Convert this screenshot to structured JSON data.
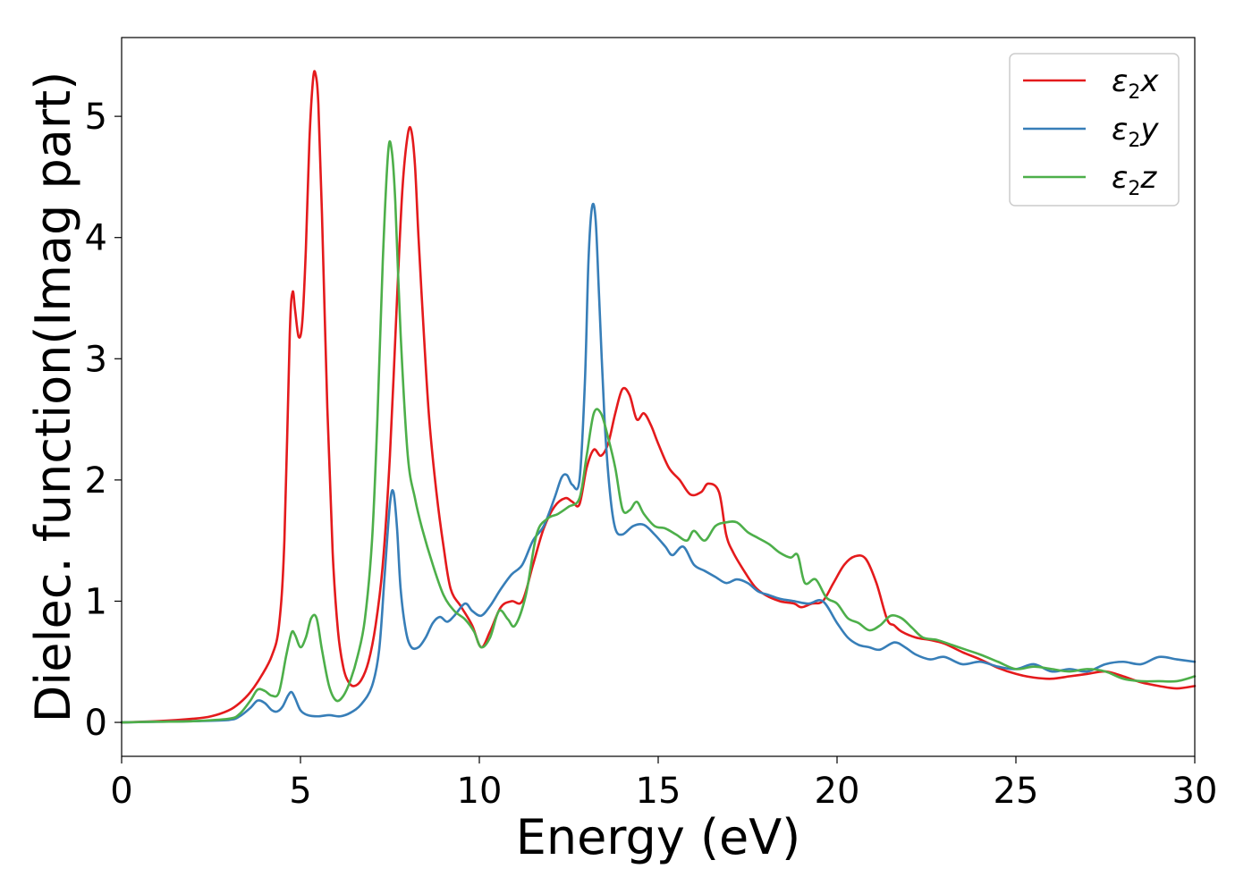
{
  "chart_data": {
    "type": "line",
    "title": "",
    "xlabel": "Energy (eV)",
    "ylabel": "Dielec. function(Imag part)",
    "xlim": [
      0,
      30
    ],
    "ylim": [
      -0.28,
      5.65
    ],
    "xticks": [
      0,
      5,
      10,
      15,
      20,
      25,
      30
    ],
    "yticks": [
      0,
      1,
      2,
      3,
      4,
      5
    ],
    "grid": false,
    "legend_position": "top-right",
    "series": [
      {
        "name": "ε2x",
        "name_base": "ε",
        "name_sub": "2",
        "name_var": "x",
        "color": "#e41a1c",
        "x": [
          0,
          1,
          2,
          2.5,
          3,
          3.3,
          3.6,
          3.9,
          4.2,
          4.4,
          4.55,
          4.7,
          4.78,
          4.85,
          4.95,
          5.05,
          5.15,
          5.25,
          5.35,
          5.42,
          5.5,
          5.6,
          5.75,
          5.9,
          6.05,
          6.2,
          6.35,
          6.5,
          6.7,
          6.9,
          7.1,
          7.3,
          7.5,
          7.7,
          7.85,
          8.0,
          8.1,
          8.2,
          8.3,
          8.45,
          8.6,
          8.8,
          9.0,
          9.2,
          9.5,
          9.8,
          10.05,
          10.3,
          10.6,
          10.9,
          11.2,
          11.5,
          11.8,
          12.1,
          12.4,
          12.6,
          12.8,
          13.0,
          13.2,
          13.4,
          13.6,
          13.8,
          14.0,
          14.2,
          14.4,
          14.6,
          14.8,
          15.0,
          15.3,
          15.6,
          15.9,
          16.2,
          16.4,
          16.7,
          16.9,
          17.1,
          17.4,
          17.7,
          18.0,
          18.4,
          18.8,
          19.0,
          19.3,
          19.6,
          19.9,
          20.2,
          20.5,
          20.8,
          21.1,
          21.4,
          21.6,
          21.8,
          22.2,
          22.6,
          23.0,
          23.5,
          24.0,
          24.5,
          25.0,
          25.5,
          26.0,
          26.5,
          27.0,
          27.5,
          28.0,
          28.5,
          29.0,
          29.5,
          30.0
        ],
        "y": [
          0.0,
          0.01,
          0.03,
          0.05,
          0.1,
          0.16,
          0.25,
          0.38,
          0.55,
          0.8,
          1.5,
          3.2,
          3.55,
          3.4,
          3.18,
          3.3,
          3.9,
          4.8,
          5.3,
          5.35,
          5.1,
          4.2,
          2.6,
          1.4,
          0.75,
          0.45,
          0.33,
          0.3,
          0.35,
          0.5,
          0.8,
          1.3,
          2.2,
          3.5,
          4.4,
          4.85,
          4.88,
          4.6,
          4.0,
          3.2,
          2.5,
          1.9,
          1.45,
          1.1,
          0.95,
          0.8,
          0.62,
          0.75,
          0.95,
          1.0,
          1.0,
          1.3,
          1.6,
          1.78,
          1.85,
          1.82,
          1.8,
          2.1,
          2.25,
          2.2,
          2.3,
          2.55,
          2.75,
          2.7,
          2.5,
          2.55,
          2.45,
          2.3,
          2.1,
          2.0,
          1.88,
          1.9,
          1.97,
          1.9,
          1.55,
          1.4,
          1.25,
          1.12,
          1.05,
          1.0,
          0.98,
          0.95,
          0.98,
          1.0,
          1.15,
          1.3,
          1.37,
          1.35,
          1.15,
          0.85,
          0.8,
          0.75,
          0.7,
          0.68,
          0.65,
          0.58,
          0.52,
          0.45,
          0.4,
          0.37,
          0.36,
          0.38,
          0.4,
          0.42,
          0.38,
          0.33,
          0.3,
          0.28,
          0.3
        ]
      },
      {
        "name": "ε2y",
        "name_base": "ε",
        "name_sub": "2",
        "name_var": "y",
        "color": "#377eb8",
        "x": [
          0,
          1,
          2,
          3,
          3.3,
          3.6,
          3.8,
          4.0,
          4.2,
          4.35,
          4.5,
          4.65,
          4.75,
          4.85,
          5.0,
          5.2,
          5.5,
          5.8,
          6.1,
          6.4,
          6.7,
          7.0,
          7.2,
          7.35,
          7.5,
          7.6,
          7.7,
          7.8,
          7.95,
          8.1,
          8.3,
          8.5,
          8.7,
          8.9,
          9.1,
          9.3,
          9.6,
          9.8,
          10.05,
          10.3,
          10.6,
          10.9,
          11.2,
          11.5,
          11.8,
          12.1,
          12.3,
          12.45,
          12.6,
          12.8,
          12.95,
          13.05,
          13.15,
          13.25,
          13.35,
          13.5,
          13.65,
          13.8,
          14.0,
          14.3,
          14.6,
          14.9,
          15.2,
          15.4,
          15.7,
          16.0,
          16.3,
          16.6,
          16.9,
          17.2,
          17.5,
          17.8,
          18.1,
          18.4,
          18.8,
          19.2,
          19.6,
          20.0,
          20.3,
          20.6,
          20.9,
          21.2,
          21.6,
          21.9,
          22.2,
          22.6,
          23.0,
          23.5,
          24.0,
          24.5,
          25.0,
          25.5,
          26.0,
          26.5,
          27.0,
          27.5,
          28.0,
          28.5,
          29.0,
          29.5,
          30.0
        ],
        "y": [
          0.0,
          0.005,
          0.01,
          0.02,
          0.05,
          0.12,
          0.18,
          0.16,
          0.1,
          0.09,
          0.13,
          0.22,
          0.25,
          0.2,
          0.1,
          0.06,
          0.05,
          0.06,
          0.05,
          0.08,
          0.15,
          0.3,
          0.6,
          1.2,
          1.8,
          1.9,
          1.6,
          1.1,
          0.75,
          0.62,
          0.62,
          0.7,
          0.82,
          0.87,
          0.83,
          0.88,
          0.98,
          0.92,
          0.88,
          0.96,
          1.1,
          1.22,
          1.3,
          1.5,
          1.62,
          1.85,
          2.02,
          2.04,
          1.96,
          2.0,
          2.8,
          3.8,
          4.25,
          4.15,
          3.5,
          2.5,
          1.9,
          1.6,
          1.55,
          1.62,
          1.63,
          1.55,
          1.45,
          1.38,
          1.45,
          1.3,
          1.25,
          1.2,
          1.15,
          1.18,
          1.15,
          1.08,
          1.05,
          1.02,
          1.0,
          0.98,
          1.0,
          0.82,
          0.7,
          0.64,
          0.62,
          0.6,
          0.66,
          0.62,
          0.56,
          0.52,
          0.54,
          0.48,
          0.5,
          0.46,
          0.44,
          0.48,
          0.42,
          0.44,
          0.42,
          0.48,
          0.5,
          0.48,
          0.54,
          0.52,
          0.5
        ]
      },
      {
        "name": "ε2z",
        "name_base": "ε",
        "name_sub": "2",
        "name_var": "z",
        "color": "#4daf4a",
        "x": [
          0,
          1,
          2,
          3,
          3.3,
          3.6,
          3.8,
          4.0,
          4.2,
          4.4,
          4.6,
          4.75,
          4.85,
          5.0,
          5.15,
          5.3,
          5.45,
          5.6,
          5.8,
          6.0,
          6.2,
          6.4,
          6.6,
          6.8,
          7.0,
          7.15,
          7.3,
          7.45,
          7.55,
          7.65,
          7.8,
          8.0,
          8.2,
          8.4,
          8.7,
          9.0,
          9.3,
          9.6,
          9.85,
          10.05,
          10.3,
          10.55,
          10.8,
          11.0,
          11.3,
          11.6,
          11.9,
          12.2,
          12.5,
          12.8,
          13.0,
          13.2,
          13.4,
          13.6,
          13.8,
          14.0,
          14.2,
          14.4,
          14.6,
          14.9,
          15.2,
          15.5,
          15.8,
          16.0,
          16.3,
          16.6,
          16.9,
          17.2,
          17.5,
          17.8,
          18.1,
          18.4,
          18.7,
          18.9,
          19.1,
          19.4,
          19.7,
          20.0,
          20.3,
          20.6,
          20.9,
          21.2,
          21.5,
          21.8,
          22.1,
          22.4,
          22.8,
          23.2,
          23.6,
          24.0,
          24.5,
          25.0,
          25.5,
          26.0,
          26.5,
          27.0,
          27.5,
          28.0,
          28.5,
          29.0,
          29.5,
          30.0
        ],
        "y": [
          0.0,
          0.005,
          0.01,
          0.03,
          0.07,
          0.18,
          0.27,
          0.26,
          0.22,
          0.25,
          0.55,
          0.74,
          0.72,
          0.62,
          0.7,
          0.86,
          0.86,
          0.6,
          0.3,
          0.18,
          0.22,
          0.35,
          0.55,
          0.85,
          1.5,
          2.5,
          3.8,
          4.7,
          4.72,
          4.3,
          3.2,
          2.2,
          1.85,
          1.6,
          1.3,
          1.05,
          0.92,
          0.85,
          0.75,
          0.62,
          0.7,
          0.92,
          0.85,
          0.8,
          1.05,
          1.55,
          1.68,
          1.72,
          1.78,
          1.85,
          2.2,
          2.55,
          2.55,
          2.35,
          2.1,
          1.76,
          1.75,
          1.82,
          1.72,
          1.62,
          1.6,
          1.55,
          1.5,
          1.58,
          1.5,
          1.62,
          1.65,
          1.65,
          1.57,
          1.52,
          1.47,
          1.4,
          1.36,
          1.38,
          1.15,
          1.18,
          1.03,
          0.98,
          0.86,
          0.82,
          0.76,
          0.8,
          0.88,
          0.86,
          0.78,
          0.7,
          0.68,
          0.64,
          0.6,
          0.56,
          0.5,
          0.44,
          0.46,
          0.44,
          0.42,
          0.44,
          0.42,
          0.36,
          0.34,
          0.34,
          0.34,
          0.38
        ]
      }
    ]
  }
}
